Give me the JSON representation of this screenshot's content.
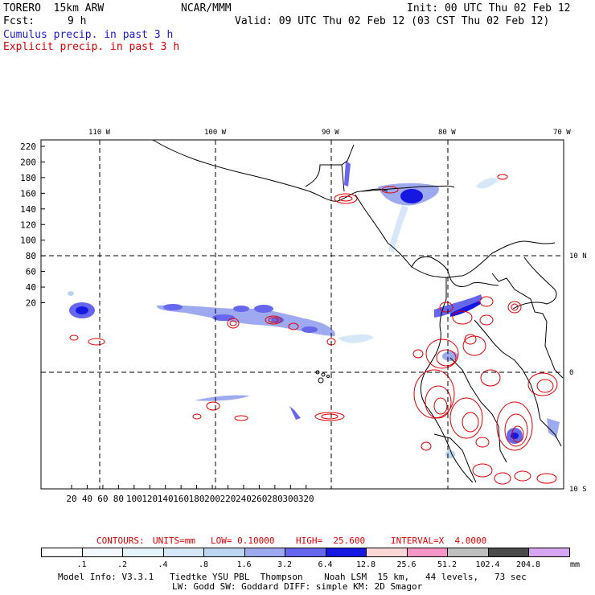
{
  "header": {
    "model": "TORERO  15km ARW",
    "org": "NCAR/MMM",
    "init": "Init: 00 UTC Thu 02 Feb 12",
    "fcst_label": "Fcst:",
    "fcst_value": "9 h",
    "valid": "Valid: 09 UTC Thu 02 Feb 12 (03 CST Thu 02 Feb 12)",
    "field1": "Cumulus precip. in past 3 h",
    "field2": "Explicit precip. in past 3 h"
  },
  "map": {
    "lon_labels": [
      "110 W",
      "100 W",
      "90 W",
      "80 W",
      "70 W"
    ],
    "lat_labels": [
      "10 N",
      "0",
      "10 S"
    ],
    "y_ticks": [
      "220",
      "200",
      "180",
      "160",
      "140",
      "120",
      "100",
      "80",
      "60",
      "40",
      "20"
    ],
    "x_ticks": [
      "20",
      "40",
      "60",
      "80",
      "100",
      "120",
      "140",
      "160",
      "180",
      "200",
      "220",
      "240",
      "260",
      "280",
      "300",
      "320"
    ],
    "colors": {
      "coast": "#000000",
      "grid": "#000000",
      "explicit": "#dd0000"
    }
  },
  "contours_line": {
    "contours": "CONTOURS:",
    "units": "UNITS=mm",
    "low": "LOW= 0.10000",
    "high": "HIGH=  25.600",
    "interval": "INTERVAL=X  4.0000"
  },
  "colorbar": {
    "labels": [
      ".1",
      ".2",
      ".4",
      ".8",
      "1.6",
      "3.2",
      "6.4",
      "12.8",
      "25.6",
      "51.2",
      "102.4",
      "204.8"
    ],
    "unit": "mm",
    "colors": [
      "#ffffff",
      "#f2f8fd",
      "#e5f3fb",
      "#d6e8f8",
      "#bcd6f2",
      "#9eaaf0",
      "#6767ee",
      "#1717e2",
      "#fbd6d6",
      "#f596c6",
      "#bfbfbf",
      "#4a4a4a",
      "#d6a6f5"
    ]
  },
  "footer": {
    "line1": "Model Info: V3.3.1   Tiedtke YSU PBL  Thompson    Noah LSM  15 km,   44 levels,   73 sec",
    "line2": "LW: Godd SW: Goddard DIFF: simple KM: 2D Smagor"
  }
}
